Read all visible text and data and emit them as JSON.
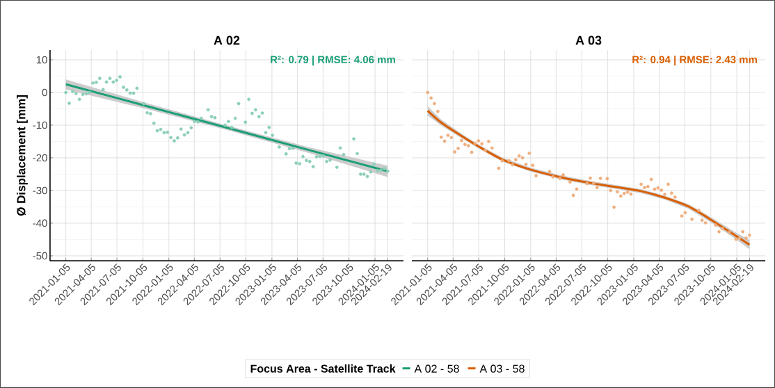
{
  "chart_data": [
    {
      "type": "scatter",
      "title": "A 02",
      "ylabel": "Ø Displacement [mm]",
      "legend_title": "Focus Area - Satellite Track",
      "legend": "bottom",
      "grid": true,
      "xlim": [
        "2020-11-10",
        "2024-04-15"
      ],
      "ylim": [
        -51.5,
        13
      ],
      "yticks": [
        -50,
        -40,
        -30,
        -20,
        -10,
        0,
        10
      ],
      "xticks": [
        "2021-01-05",
        "2021-04-05",
        "2021-07-05",
        "2021-10-05",
        "2022-01-05",
        "2022-04-05",
        "2022-07-05",
        "2022-10-05",
        "2023-01-05",
        "2023-04-05",
        "2023-07-05",
        "2023-10-05",
        "2024-01-05",
        "2024-02-19"
      ],
      "annotations": [
        "R²: 0.79 | RMSE: 4.06 mm"
      ],
      "series": [
        {
          "color": "#8dcfb8",
          "marker": "circle",
          "x": [
            "2021-01-05",
            "2021-01-17",
            "2021-01-29",
            "2021-02-10",
            "2021-02-22",
            "2021-03-06",
            "2021-03-18",
            "2021-03-30",
            "2021-04-11",
            "2021-04-23",
            "2021-05-05",
            "2021-05-17",
            "2021-05-29",
            "2021-06-10",
            "2021-06-22",
            "2021-07-04",
            "2021-07-16",
            "2021-07-28",
            "2021-08-09",
            "2021-08-21",
            "2021-09-02",
            "2021-09-14",
            "2021-10-08",
            "2021-10-20",
            "2021-11-01",
            "2021-11-13",
            "2021-11-25",
            "2021-12-07",
            "2021-12-19",
            "2021-12-31",
            "2022-01-12",
            "2022-01-24",
            "2022-02-05",
            "2022-02-17",
            "2022-03-01",
            "2022-03-13",
            "2022-03-25",
            "2022-04-06",
            "2022-04-18",
            "2022-04-30",
            "2022-05-24",
            "2022-06-05",
            "2022-06-17",
            "2022-07-23",
            "2022-08-04",
            "2022-08-16",
            "2022-08-28",
            "2022-09-09",
            "2022-10-03",
            "2022-10-15",
            "2022-10-27",
            "2022-11-08",
            "2022-11-20",
            "2022-12-02",
            "2022-12-14",
            "2022-12-26",
            "2023-01-07",
            "2023-01-31",
            "2023-02-24",
            "2023-03-08",
            "2023-03-20",
            "2023-04-01",
            "2023-04-13",
            "2023-04-25",
            "2023-05-07",
            "2023-05-19",
            "2023-05-31",
            "2023-06-12",
            "2023-06-24",
            "2023-07-06",
            "2023-07-18",
            "2023-07-30",
            "2023-08-23",
            "2023-09-04",
            "2023-09-16",
            "2023-10-22",
            "2023-11-03",
            "2023-11-15",
            "2023-11-27",
            "2023-12-09",
            "2023-12-21",
            "2024-01-02",
            "2024-01-14",
            "2024-01-26",
            "2024-02-07",
            "2024-02-19"
          ],
          "values": [
            0.0,
            -3.3,
            0.3,
            -0.3,
            -2.1,
            -0.6,
            -0.4,
            0.0,
            2.9,
            3.1,
            4.3,
            0.9,
            3.2,
            4.3,
            3.2,
            3.7,
            4.8,
            1.6,
            0.8,
            -0.2,
            -0.2,
            1.3,
            -3.4,
            -6.2,
            -6.5,
            -9.4,
            -11.7,
            -11.3,
            -12.3,
            -12.2,
            -13.8,
            -14.8,
            -13.9,
            -11.2,
            -13.0,
            -12.3,
            -10.8,
            -8.9,
            -9.0,
            -7.9,
            -5.3,
            -7.4,
            -7.7,
            -10.0,
            -8.9,
            -10.7,
            -7.9,
            -3.4,
            -9.1,
            -2.1,
            -6.4,
            -5.3,
            -7.4,
            -6.3,
            -12.3,
            -10.7,
            -13.1,
            -16.7,
            -18.8,
            -17.2,
            -17.1,
            -21.6,
            -21.8,
            -19.6,
            -20.8,
            -21.1,
            -22.7,
            -19.7,
            -19.6,
            -19.4,
            -21.1,
            -20.7,
            -22.9,
            -17.0,
            -19.0,
            -14.2,
            -18.7,
            -25.0,
            -25.0,
            -25.7,
            -24.3,
            -21.9,
            -23.9,
            -23.8,
            -23.3,
            -24.1
          ]
        },
        {
          "type": "line",
          "name": "A 02 - 58",
          "color": "#1b9e77",
          "marker": "none",
          "x": [
            "2021-01-05",
            "2021-10-20",
            "2022-08-04",
            "2023-05-19",
            "2024-02-19"
          ],
          "values": [
            2.5,
            -4.2,
            -10.9,
            -17.7,
            -24.1
          ],
          "lower": [
            0.9,
            -5.1,
            -11.6,
            -18.6,
            -25.9
          ],
          "upper": [
            4.0,
            -3.3,
            -10.2,
            -16.8,
            -22.4
          ]
        }
      ]
    },
    {
      "type": "scatter",
      "title": "A 03",
      "legend": "bottom",
      "grid": true,
      "tick_labels": "x",
      "xlim": [
        "2020-11-10",
        "2024-04-15"
      ],
      "ylim": [
        -51.5,
        13
      ],
      "yticks": [
        -50,
        -40,
        -30,
        -20,
        -10,
        0,
        10
      ],
      "xticks": [
        "2021-01-05",
        "2021-04-05",
        "2021-07-05",
        "2021-10-05",
        "2022-01-05",
        "2022-04-05",
        "2022-07-05",
        "2022-10-05",
        "2023-01-05",
        "2023-04-05",
        "2023-07-05",
        "2023-10-05",
        "2024-01-05",
        "2024-02-19"
      ],
      "annotations": [
        "R²: 0.94 | RMSE: 2.43 mm"
      ],
      "series": [
        {
          "color": "#eeaf80",
          "marker": "circle",
          "x": [
            "2021-01-05",
            "2021-01-17",
            "2021-01-29",
            "2021-02-10",
            "2021-02-22",
            "2021-03-06",
            "2021-03-18",
            "2021-03-30",
            "2021-04-11",
            "2021-04-23",
            "2021-05-05",
            "2021-05-17",
            "2021-05-29",
            "2021-06-10",
            "2021-06-22",
            "2021-07-04",
            "2021-07-16",
            "2021-07-28",
            "2021-08-09",
            "2021-08-21",
            "2021-09-14",
            "2021-09-26",
            "2021-10-20",
            "2021-11-01",
            "2021-11-13",
            "2021-11-25",
            "2021-12-07",
            "2021-12-19",
            "2021-12-31",
            "2022-01-12",
            "2022-01-24",
            "2022-03-13",
            "2022-03-25",
            "2022-04-18",
            "2022-04-30",
            "2022-05-24",
            "2022-06-05",
            "2022-06-17",
            "2022-07-23",
            "2022-08-04",
            "2022-08-16",
            "2022-08-28",
            "2022-09-09",
            "2022-10-03",
            "2022-10-15",
            "2022-10-27",
            "2022-11-08",
            "2022-11-20",
            "2022-12-02",
            "2022-12-14",
            "2022-12-26",
            "2023-01-31",
            "2023-02-12",
            "2023-02-24",
            "2023-03-08",
            "2023-03-20",
            "2023-04-01",
            "2023-04-13",
            "2023-04-25",
            "2023-05-07",
            "2023-05-19",
            "2023-05-31",
            "2023-06-24",
            "2023-07-06",
            "2023-07-30",
            "2023-08-23",
            "2023-09-04",
            "2023-09-16",
            "2023-10-22",
            "2023-11-03",
            "2023-11-15",
            "2023-12-09",
            "2024-01-02",
            "2024-01-14",
            "2024-01-26",
            "2024-02-07",
            "2024-02-19"
          ],
          "values": [
            0.0,
            -1.7,
            -3.4,
            -5.8,
            -13.7,
            -14.9,
            -13.1,
            -13.8,
            -18.2,
            -17.1,
            -14.7,
            -15.9,
            -16.3,
            -18.3,
            -15.6,
            -14.8,
            -15.7,
            -17.7,
            -15.0,
            -17.0,
            -23.2,
            -20.9,
            -20.9,
            -22.1,
            -20.6,
            -19.4,
            -20.0,
            -22.0,
            -18.6,
            -22.3,
            -25.5,
            -24.2,
            -25.8,
            -26.3,
            -25.2,
            -27.4,
            -31.5,
            -29.6,
            -27.9,
            -26.2,
            -27.8,
            -29.1,
            -26.3,
            -26.4,
            -30.0,
            -35.1,
            -30.4,
            -31.7,
            -30.9,
            -30.5,
            -31.1,
            -28.1,
            -29.1,
            -28.8,
            -26.6,
            -29.6,
            -29.2,
            -29.9,
            -31.2,
            -28.1,
            -30.8,
            -32.0,
            -37.8,
            -36.8,
            -38.8,
            -36.1,
            -39.1,
            -39.9,
            -40.6,
            -42.6,
            -41.6,
            -42.8,
            -44.9,
            -44.7,
            -42.6,
            -44.6,
            -43.7
          ]
        },
        {
          "type": "line",
          "name": "A 03 - 58",
          "color": "#d95f02",
          "marker": "none",
          "x": [
            "2021-01-05",
            "2021-02-22",
            "2021-05-05",
            "2021-07-04",
            "2021-09-26",
            "2021-12-31",
            "2022-04-18",
            "2022-08-04",
            "2022-11-08",
            "2023-01-31",
            "2023-04-25",
            "2023-07-18",
            "2023-10-10",
            "2024-01-02",
            "2024-02-19"
          ],
          "values": [
            -5.6,
            -9.2,
            -13.3,
            -16.5,
            -20.5,
            -23.5,
            -25.9,
            -27.7,
            -29.0,
            -30.2,
            -32.2,
            -34.9,
            -39.2,
            -43.9,
            -46.6
          ],
          "lower": [
            -7.0,
            -10.1,
            -14.0,
            -17.1,
            -21.1,
            -24.1,
            -26.5,
            -28.3,
            -29.6,
            -30.8,
            -32.8,
            -35.6,
            -40.0,
            -44.9,
            -48.0
          ],
          "upper": [
            -4.2,
            -8.3,
            -12.6,
            -15.9,
            -19.9,
            -22.9,
            -25.3,
            -27.1,
            -28.4,
            -29.6,
            -31.6,
            -34.2,
            -38.4,
            -42.9,
            -45.2
          ]
        }
      ]
    }
  ]
}
